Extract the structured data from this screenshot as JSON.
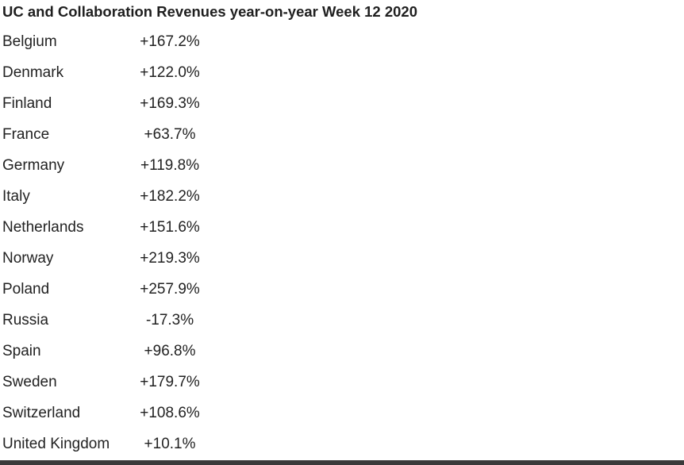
{
  "title": "UC and Collaboration Revenues year-on-year Week 12 2020",
  "rows": [
    {
      "country": "Belgium",
      "value": "+167.2%"
    },
    {
      "country": "Denmark",
      "value": "+122.0%"
    },
    {
      "country": "Finland",
      "value": "+169.3%"
    },
    {
      "country": "France",
      "value": "+63.7%"
    },
    {
      "country": "Germany",
      "value": "+119.8%"
    },
    {
      "country": "Italy",
      "value": "+182.2%"
    },
    {
      "country": "Netherlands",
      "value": "+151.6%"
    },
    {
      "country": "Norway",
      "value": "+219.3%"
    },
    {
      "country": "Poland",
      "value": "+257.9%"
    },
    {
      "country": "Russia",
      "value": "-17.3%"
    },
    {
      "country": "Spain",
      "value": "+96.8%"
    },
    {
      "country": "Sweden",
      "value": "+179.7%"
    },
    {
      "country": "Switzerland",
      "value": "+108.6%"
    },
    {
      "country": "United Kingdom",
      "value": "+10.1%"
    }
  ]
}
